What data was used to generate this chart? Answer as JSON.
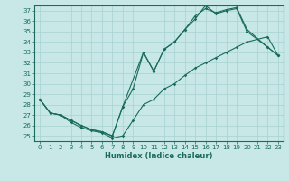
{
  "xlabel": "Humidex (Indice chaleur)",
  "xlim": [
    -0.5,
    23.5
  ],
  "ylim": [
    24.5,
    37.5
  ],
  "yticks": [
    25,
    26,
    27,
    28,
    29,
    30,
    31,
    32,
    33,
    34,
    35,
    36,
    37
  ],
  "xticks": [
    0,
    1,
    2,
    3,
    4,
    5,
    6,
    7,
    8,
    9,
    10,
    11,
    12,
    13,
    14,
    15,
    16,
    17,
    18,
    19,
    20,
    21,
    22,
    23
  ],
  "bg_color": "#c8e8e8",
  "grid_color": "#a8d0d0",
  "line_color": "#1a6b5a",
  "line1_x": [
    0,
    1,
    2,
    3,
    4,
    5,
    6,
    7,
    8,
    9,
    10,
    11,
    12,
    13,
    14,
    15,
    16,
    17,
    18,
    19,
    20,
    22,
    23
  ],
  "line1_y": [
    28.5,
    27.2,
    27.0,
    26.5,
    26.0,
    25.6,
    25.4,
    25.0,
    27.8,
    29.5,
    33.0,
    31.2,
    33.3,
    34.0,
    35.2,
    36.2,
    37.5,
    36.7,
    37.0,
    37.2,
    35.0,
    33.5,
    32.7
  ],
  "line2_x": [
    0,
    1,
    2,
    3,
    4,
    5,
    6,
    7,
    8,
    10,
    11,
    12,
    13,
    14,
    15,
    16,
    17,
    18,
    19,
    20,
    22,
    23
  ],
  "line2_y": [
    28.5,
    27.2,
    27.0,
    26.5,
    26.0,
    25.6,
    25.4,
    25.0,
    27.8,
    33.0,
    31.2,
    33.3,
    34.0,
    35.2,
    36.5,
    37.2,
    36.8,
    37.1,
    37.3,
    35.2,
    33.5,
    32.7
  ],
  "line3_x": [
    0,
    1,
    2,
    3,
    4,
    5,
    6,
    7,
    8,
    9,
    10,
    11,
    12,
    13,
    14,
    15,
    16,
    17,
    18,
    19,
    20,
    22,
    23
  ],
  "line3_y": [
    28.5,
    27.2,
    27.0,
    26.3,
    25.8,
    25.5,
    25.3,
    24.8,
    25.0,
    26.5,
    28.0,
    28.5,
    29.5,
    30.0,
    30.8,
    31.5,
    32.0,
    32.5,
    33.0,
    33.5,
    34.0,
    34.5,
    32.7
  ]
}
